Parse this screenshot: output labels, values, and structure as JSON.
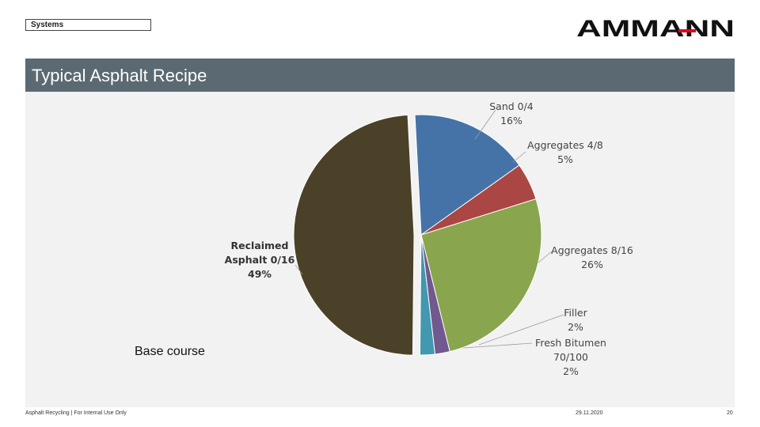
{
  "header": {
    "section_tag": "Systems",
    "logo_text": "AMMANN"
  },
  "slide": {
    "title": "Typical Asphalt Recipe",
    "caption": "Base course"
  },
  "footer": {
    "left": "Asphalt Recycling | For Internal Use Only",
    "date": "29.11.2020",
    "page": "20"
  },
  "colors": {
    "title_bar": "#5b6a72",
    "content_bg": "#f2f2f2",
    "logo": "#111111",
    "logo_accent": "#e2001a"
  },
  "chart_data": {
    "type": "pie",
    "unit": "%",
    "slices": [
      {
        "name": "Sand 0/4",
        "label_lines": [
          "Sand 0/4",
          "16%"
        ],
        "value": 16,
        "color": "#4573a7",
        "bold": false,
        "exploded": false
      },
      {
        "name": "Aggregates 4/8",
        "label_lines": [
          "Aggregates 4/8",
          "5%"
        ],
        "value": 5,
        "color": "#aa4643",
        "bold": false,
        "exploded": false
      },
      {
        "name": "Aggregates 8/16",
        "label_lines": [
          "Aggregates 8/16",
          "26%"
        ],
        "value": 26,
        "color": "#89a54e",
        "bold": false,
        "exploded": false
      },
      {
        "name": "Filler",
        "label_lines": [
          "Filler",
          "2%"
        ],
        "value": 2,
        "color": "#71588f",
        "bold": false,
        "exploded": false
      },
      {
        "name": "Fresh Bitumen 70/100",
        "label_lines": [
          "Fresh Bitumen",
          "70/100",
          "2%"
        ],
        "value": 2,
        "color": "#4198af",
        "bold": false,
        "exploded": false
      },
      {
        "name": "Reclaimed Asphalt 0/16",
        "label_lines": [
          "Reclaimed",
          "Asphalt 0/16",
          "49%"
        ],
        "value": 49,
        "color": "#4a4128",
        "bold": true,
        "exploded": true
      }
    ]
  }
}
